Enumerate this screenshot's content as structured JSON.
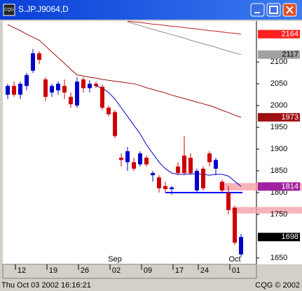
{
  "window": {
    "title": "S.JP.J9064,D"
  },
  "status": {
    "datetime": "Thu Oct 03 2002 16:16:21",
    "copyright": "CQG © 2002"
  },
  "chart_data": {
    "type": "candlestick",
    "categories": [
      null,
      null,
      "12",
      null,
      null,
      null,
      null,
      "19",
      null,
      null,
      null,
      null,
      "26",
      null,
      null,
      null,
      null,
      "02",
      null,
      null,
      null,
      null,
      "09",
      null,
      null,
      null,
      null,
      "17",
      null,
      null,
      null,
      "24",
      null,
      null,
      null,
      null,
      "01",
      null
    ],
    "months": [
      null,
      null,
      null,
      null,
      null,
      null,
      null,
      null,
      null,
      null,
      null,
      null,
      null,
      null,
      null,
      null,
      null,
      "Sep",
      null,
      null,
      null,
      null,
      null,
      null,
      null,
      null,
      null,
      null,
      null,
      null,
      null,
      null,
      null,
      null,
      null,
      null,
      "Oct",
      null
    ],
    "open": [
      2025,
      2045,
      2025,
      2045,
      2080,
      2120,
      2060,
      2030,
      2035,
      2045,
      2020,
      2000,
      2060,
      2040,
      2050,
      2043,
      1995,
      1985,
      1880,
      1870,
      1870,
      1865,
      1880,
      1840,
      1835,
      1815,
      1808,
      1860,
      1885,
      1880,
      1805,
      1855,
      1890,
      1855,
      1825,
      1800,
      1765,
      1658
    ],
    "high": [
      2050,
      2055,
      2055,
      2075,
      2130,
      2125,
      2065,
      2050,
      2055,
      2060,
      2030,
      2065,
      2065,
      2058,
      2055,
      2048,
      2000,
      1990,
      1890,
      1905,
      1880,
      1895,
      1885,
      1850,
      1840,
      1825,
      1815,
      1870,
      1930,
      1890,
      1855,
      1860,
      1895,
      1880,
      1830,
      1815,
      1770,
      1705
    ],
    "low": [
      2015,
      2020,
      2015,
      2035,
      2075,
      2095,
      2010,
      2020,
      2025,
      2015,
      1995,
      1995,
      2030,
      2030,
      2040,
      1990,
      1975,
      1925,
      1860,
      1850,
      1850,
      1860,
      1860,
      1825,
      1800,
      1800,
      1795,
      1840,
      1840,
      1840,
      1800,
      1805,
      1860,
      1840,
      1800,
      1750,
      1680,
      1652
    ],
    "close": [
      2045,
      2025,
      2050,
      2070,
      2120,
      2105,
      2020,
      2045,
      2050,
      2030,
      2003,
      2055,
      2040,
      2050,
      2045,
      1995,
      1980,
      1930,
      1875,
      1895,
      1855,
      1890,
      1865,
      1845,
      1810,
      1808,
      1812,
      1845,
      1845,
      1845,
      1850,
      1810,
      1870,
      1875,
      1805,
      1760,
      1685,
      1698
    ],
    "up_color": "#0000cc",
    "down_color": "#cc0000",
    "series": [
      {
        "color": "#0000cc",
        "values": [
          null,
          null,
          null,
          null,
          null,
          null,
          null,
          null,
          null,
          null,
          null,
          null,
          null,
          null,
          2045,
          2040,
          2030,
          2015,
          1995,
          1975,
          1955,
          1935,
          1910,
          1890,
          1870,
          1855,
          1845,
          1842,
          1842,
          1843,
          1843,
          1842,
          1840,
          1842,
          1842,
          1838,
          1826,
          1814
        ]
      },
      {
        "color": "#a01010",
        "values": [
          2186,
          2179,
          2172,
          2164,
          2157,
          2150,
          2137,
          2123,
          2110,
          2097,
          2083,
          2070,
          2068,
          2065,
          2063,
          2060,
          2058,
          2056,
          2054,
          2052,
          2050,
          2046,
          2041,
          2037,
          2033,
          2029,
          2024,
          2020,
          2016,
          2012,
          2008,
          2004,
          2000,
          1995,
          1989,
          1984,
          1978,
          1973
        ]
      },
      {
        "color": "#909090",
        "values": [
          null,
          null,
          null,
          null,
          null,
          null,
          null,
          null,
          null,
          null,
          null,
          null,
          null,
          null,
          null,
          null,
          null,
          null,
          null,
          2192,
          2188,
          2184,
          2179,
          2175,
          2171,
          2167,
          2163,
          2159,
          2155,
          2150,
          2146,
          2142,
          2138,
          2134,
          2129,
          2125,
          2121,
          2117
        ]
      },
      {
        "color": "#c02020",
        "values": [
          null,
          null,
          null,
          null,
          null,
          null,
          null,
          null,
          null,
          null,
          null,
          null,
          null,
          null,
          null,
          null,
          null,
          null,
          null,
          2194,
          2192,
          2191,
          2189,
          2187,
          2186,
          2184,
          2182,
          2181,
          2179,
          2177,
          2176,
          2174,
          2172,
          2171,
          2169,
          2167,
          2166,
          2164
        ]
      }
    ],
    "ylim": [
      1637,
      2194
    ],
    "yticks": [
      2100,
      2050,
      2000,
      1950,
      1900,
      1850,
      1800,
      1750,
      1650
    ],
    "last_labels": [
      {
        "value": 2164,
        "color": "#ff2020",
        "text_color": "#ffffff"
      },
      {
        "value": 2117,
        "color": "#a0a0a0",
        "text_color": "#000000"
      },
      {
        "value": 1973,
        "color": "#a01010",
        "text_color": "#ffffff"
      },
      {
        "value": 1814,
        "color": "#a020a0",
        "text_color": "#ffffff"
      },
      {
        "value": 1698,
        "color": "#000000",
        "text_color": "#ffffff"
      }
    ],
    "support": {
      "value": 1800,
      "from": 25,
      "color": "#0000ff"
    },
    "bands": [
      {
        "from": 1805,
        "to": 1822,
        "start": 34
      },
      {
        "from": 1752,
        "to": 1767,
        "start": 36
      }
    ]
  }
}
